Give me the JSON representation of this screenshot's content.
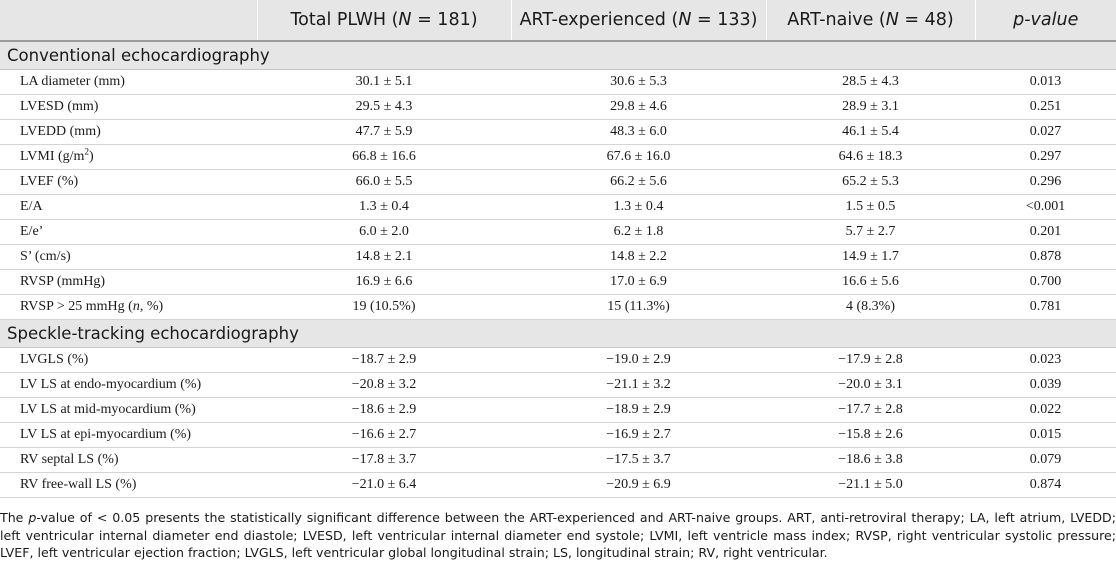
{
  "table": {
    "header": {
      "col0": "",
      "col1_text": "Total PLWH (",
      "col1_n": "N",
      "col1_val": " = 181)",
      "col2_text": "ART-experienced (",
      "col2_n": "N",
      "col2_val": " = 133)",
      "col3_text": "ART-naive (",
      "col3_n": "N",
      "col3_val": " = 48)",
      "col4": "p-value"
    },
    "sections": [
      {
        "title": "Conventional echocardiography",
        "rows": [
          {
            "label": "LA diameter (mm)",
            "total": "30.1 ± 5.1",
            "exp": "30.6 ± 5.3",
            "naive": "28.5 ± 4.3",
            "p": "0.013"
          },
          {
            "label": "LVESD (mm)",
            "total": "29.5 ± 4.3",
            "exp": "29.8 ± 4.6",
            "naive": "28.9 ± 3.1",
            "p": "0.251"
          },
          {
            "label": "LVEDD (mm)",
            "total": "47.7 ± 5.9",
            "exp": "48.3 ± 6.0",
            "naive": "46.1 ± 5.4",
            "p": "0.027"
          },
          {
            "label_pre": "LVMI (g/m",
            "label_sup": "2",
            "label_post": ")",
            "total": "66.8 ± 16.6",
            "exp": "67.6 ± 16.0",
            "naive": "64.6 ± 18.3",
            "p": "0.297"
          },
          {
            "label": "LVEF (%)",
            "total": "66.0 ± 5.5",
            "exp": "66.2 ± 5.6",
            "naive": "65.2 ± 5.3",
            "p": "0.296"
          },
          {
            "label": "E/A",
            "total": "1.3 ± 0.4",
            "exp": "1.3 ± 0.4",
            "naive": "1.5 ± 0.5",
            "p": "<0.001"
          },
          {
            "label": "E/e’",
            "total": "6.0 ± 2.0",
            "exp": "6.2 ± 1.8",
            "naive": "5.7 ± 2.7",
            "p": "0.201"
          },
          {
            "label": "S’ (cm/s)",
            "total": "14.8 ± 2.1",
            "exp": "14.8 ± 2.2",
            "naive": "14.9 ± 1.7",
            "p": "0.878"
          },
          {
            "label": "RVSP (mmHg)",
            "total": "16.9 ± 6.6",
            "exp": "17.0 ± 6.9",
            "naive": "16.6 ± 5.6",
            "p": "0.700"
          },
          {
            "label_pre": "RVSP > 25 mmHg (",
            "label_it": "n",
            "label_post": ", %)",
            "total": "19 (10.5%)",
            "exp": "15 (11.3%)",
            "naive": "4 (8.3%)",
            "p": "0.781"
          }
        ]
      },
      {
        "title": "Speckle-tracking echocardiography",
        "rows": [
          {
            "label": "LVGLS (%)",
            "total": "−18.7 ± 2.9",
            "exp": "−19.0 ± 2.9",
            "naive": "−17.9 ± 2.8",
            "p": "0.023"
          },
          {
            "label": "LV LS at endo-myocardium (%)",
            "total": "−20.8 ± 3.2",
            "exp": "−21.1 ± 3.2",
            "naive": "−20.0 ± 3.1",
            "p": "0.039"
          },
          {
            "label": "LV LS at mid-myocardium (%)",
            "total": "−18.6 ± 2.9",
            "exp": "−18.9 ± 2.9",
            "naive": "−17.7 ± 2.8",
            "p": "0.022"
          },
          {
            "label": "LV LS at epi-myocardium (%)",
            "total": "−16.6 ± 2.7",
            "exp": "−16.9 ± 2.7",
            "naive": "−15.8 ± 2.6",
            "p": "0.015"
          },
          {
            "label": "RV septal LS (%)",
            "total": "−17.8 ± 3.7",
            "exp": "−17.5 ± 3.7",
            "naive": "−18.6 ± 3.8",
            "p": "0.079"
          },
          {
            "label": "RV free-wall LS (%)",
            "total": "−21.0 ± 6.4",
            "exp": "−20.9 ± 6.9",
            "naive": "−21.1 ± 5.0",
            "p": "0.874"
          }
        ]
      }
    ]
  },
  "footnote": {
    "p_it": "p",
    "text": "-value of < 0.05 presents the statistically significant difference between the ART-experienced and ART-naive groups. ART, anti-retroviral therapy; LA, left atrium, LVEDD; left ventricular internal diameter end diastole; LVESD, left ventricular internal diameter end systole; LVMI, left ventricle mass index; RVSP, right ventricular systolic pressure; LVEF, left ventricular ejection fraction; LVGLS, left ventricular global longitudinal strain; LS, longitudinal strain; RV, right ventricular.",
    "lead": "The "
  }
}
